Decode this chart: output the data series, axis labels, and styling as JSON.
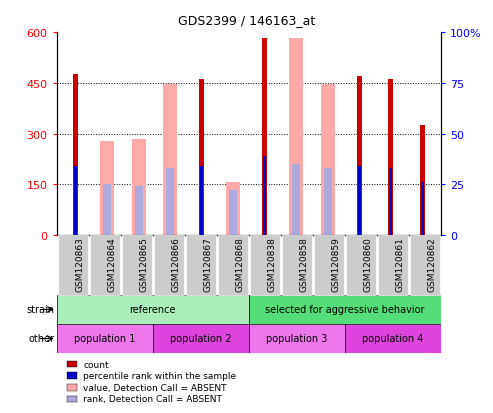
{
  "title": "GDS2399 / 146163_at",
  "samples": [
    "GSM120863",
    "GSM120864",
    "GSM120865",
    "GSM120866",
    "GSM120867",
    "GSM120868",
    "GSM120838",
    "GSM120858",
    "GSM120859",
    "GSM120860",
    "GSM120861",
    "GSM120862"
  ],
  "count_values": [
    475,
    0,
    0,
    0,
    462,
    0,
    583,
    0,
    0,
    470,
    462,
    325
  ],
  "rank_pct": [
    34,
    0,
    0,
    0,
    34,
    0,
    39,
    0,
    0,
    34,
    33,
    26
  ],
  "absent_value_bars": [
    0,
    278,
    283,
    448,
    0,
    158,
    0,
    583,
    447,
    0,
    0,
    0
  ],
  "absent_rank_pct": [
    0,
    25,
    24,
    33,
    0,
    22,
    0,
    35,
    33,
    0,
    0,
    0
  ],
  "left_ylim": [
    0,
    600
  ],
  "right_ylim": [
    0,
    100
  ],
  "left_yticks": [
    0,
    150,
    300,
    450,
    600
  ],
  "right_yticks": [
    0,
    25,
    50,
    75,
    100
  ],
  "left_ytick_labels": [
    "0",
    "150",
    "300",
    "450",
    "600"
  ],
  "right_ytick_labels": [
    "0",
    "25",
    "50",
    "75",
    "100%"
  ],
  "color_count": "#cc0000",
  "color_rank": "#0000cc",
  "color_absent_value": "#ffaaaa",
  "color_absent_rank": "#aaaadd",
  "strain_groups": [
    {
      "label": "reference",
      "start": 0,
      "end": 6,
      "color": "#aaeebb"
    },
    {
      "label": "selected for aggressive behavior",
      "start": 6,
      "end": 12,
      "color": "#55dd77"
    }
  ],
  "other_groups": [
    {
      "label": "population 1",
      "start": 0,
      "end": 3,
      "color": "#ee77ee"
    },
    {
      "label": "population 2",
      "start": 3,
      "end": 6,
      "color": "#dd44dd"
    },
    {
      "label": "population 3",
      "start": 6,
      "end": 9,
      "color": "#ee77ee"
    },
    {
      "label": "population 4",
      "start": 9,
      "end": 12,
      "color": "#dd44dd"
    }
  ],
  "absent_bar_width": 0.45,
  "count_bar_width": 0.15,
  "rank_bar_width": 0.1,
  "absent_rank_bar_width": 0.25,
  "gridlines": [
    150,
    300,
    450
  ],
  "xtick_bg": "#cccccc",
  "plot_bg": "white",
  "legend_items": [
    {
      "color": "#cc0000",
      "label": "count"
    },
    {
      "color": "#0000cc",
      "label": "percentile rank within the sample"
    },
    {
      "color": "#ffaaaa",
      "label": "value, Detection Call = ABSENT"
    },
    {
      "color": "#aaaadd",
      "label": "rank, Detection Call = ABSENT"
    }
  ]
}
